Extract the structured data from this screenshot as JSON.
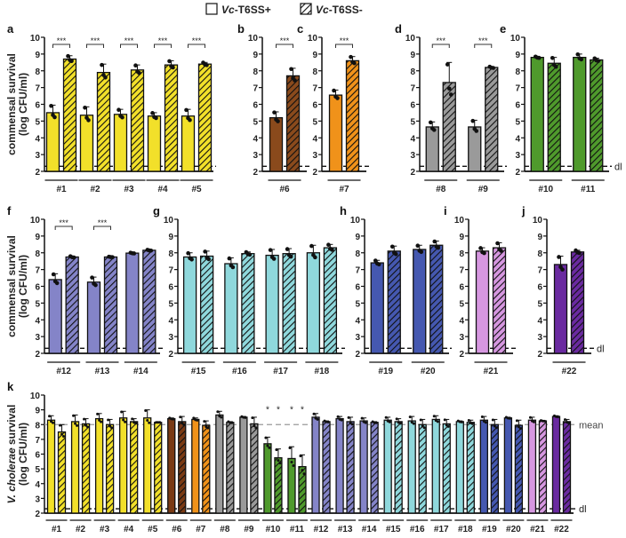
{
  "legend": {
    "items": [
      {
        "italic": "Vc",
        "rest": "-T6SS+",
        "pattern": "solid"
      },
      {
        "italic": "Vc",
        "rest": "-T6SS-",
        "pattern": "hatched"
      }
    ]
  },
  "labels": {
    "ylabel_commensal_1": "commensal survival",
    "ylabel_commensal_2": "(log CFU/ml)",
    "ylabel_vc_1_italic": "V. cholerae",
    "ylabel_vc_1_rest": " survival",
    "ylabel_vc_2": "(log CFU/ml)",
    "dl": "dl",
    "mean": "mean"
  },
  "chart_data": [
    {
      "panel": "a",
      "type": "bar",
      "ylim": [
        2,
        10
      ],
      "yticks": [
        2,
        3,
        4,
        5,
        6,
        7,
        8,
        9,
        10
      ],
      "detection_limit": 2.3,
      "color": "#f2e02a",
      "groups": [
        {
          "label": "#1",
          "solid": 5.5,
          "hatched": 8.7,
          "solid_err": 0.45,
          "hatched_err": 0.2,
          "sig": "***"
        },
        {
          "label": "#2",
          "solid": 5.35,
          "hatched": 7.9,
          "solid_err": 0.5,
          "hatched_err": 0.5,
          "sig": "***"
        },
        {
          "label": "#3",
          "solid": 5.4,
          "hatched": 8.05,
          "solid_err": 0.3,
          "hatched_err": 0.3,
          "sig": "***"
        },
        {
          "label": "#4",
          "solid": 5.3,
          "hatched": 8.35,
          "solid_err": 0.2,
          "hatched_err": 0.25,
          "sig": "***"
        },
        {
          "label": "#5",
          "solid": 5.3,
          "hatched": 8.4,
          "solid_err": 0.4,
          "hatched_err": 0.1,
          "sig": "***"
        }
      ]
    },
    {
      "panel": "b",
      "type": "bar",
      "ylim": [
        2,
        10
      ],
      "detection_limit": 2.3,
      "color": "#8a4a1c",
      "groups": [
        {
          "label": "#6",
          "solid": 5.2,
          "hatched": 7.7,
          "solid_err": 0.35,
          "hatched_err": 0.45,
          "sig": "***"
        }
      ]
    },
    {
      "panel": "c",
      "type": "bar",
      "ylim": [
        2,
        10
      ],
      "detection_limit": 2.3,
      "color": "#f0921a",
      "groups": [
        {
          "label": "#7",
          "solid": 6.55,
          "hatched": 8.6,
          "solid_err": 0.3,
          "hatched_err": 0.25,
          "sig": "***"
        }
      ]
    },
    {
      "panel": "d",
      "type": "bar",
      "ylim": [
        2,
        10
      ],
      "detection_limit": 2.3,
      "color": "#9a9a9a",
      "groups": [
        {
          "label": "#8",
          "solid": 4.65,
          "hatched": 7.3,
          "solid_err": 0.3,
          "hatched_err": 1.2,
          "sig": "***"
        },
        {
          "label": "#9",
          "solid": 4.65,
          "hatched": 8.2,
          "solid_err": 0.4,
          "hatched_err": 0.05,
          "sig": "***"
        }
      ]
    },
    {
      "panel": "e",
      "type": "bar",
      "ylim": [
        2,
        10
      ],
      "detection_limit": 2.3,
      "color": "#4f9a2c",
      "show_dl": true,
      "groups": [
        {
          "label": "#10",
          "solid": 8.8,
          "hatched": 8.45,
          "solid_err": 0.05,
          "hatched_err": 0.35,
          "sig": ""
        },
        {
          "label": "#11",
          "solid": 8.8,
          "hatched": 8.65,
          "solid_err": 0.2,
          "hatched_err": 0.1,
          "sig": ""
        }
      ]
    },
    {
      "panel": "f",
      "type": "bar",
      "ylim": [
        2,
        10
      ],
      "detection_limit": 2.3,
      "color": "#8484c8",
      "groups": [
        {
          "label": "#12",
          "solid": 6.4,
          "hatched": 7.75,
          "solid_err": 0.35,
          "hatched_err": 0.05,
          "sig": "***"
        },
        {
          "label": "#13",
          "solid": 6.25,
          "hatched": 7.75,
          "solid_err": 0.3,
          "hatched_err": 0.02,
          "sig": "***"
        },
        {
          "label": "#14",
          "solid": 7.98,
          "hatched": 8.15,
          "solid_err": 0.03,
          "hatched_err": 0.03,
          "sig": ""
        }
      ]
    },
    {
      "panel": "g",
      "type": "bar",
      "ylim": [
        2,
        10
      ],
      "detection_limit": 2.3,
      "color": "#8fd8dc",
      "groups": [
        {
          "label": "#15",
          "solid": 7.75,
          "hatched": 7.8,
          "solid_err": 0.25,
          "hatched_err": 0.3,
          "sig": ""
        },
        {
          "label": "#16",
          "solid": 7.35,
          "hatched": 7.95,
          "solid_err": 0.35,
          "hatched_err": 0.1,
          "sig": ""
        },
        {
          "label": "#17",
          "solid": 7.85,
          "hatched": 7.95,
          "solid_err": 0.35,
          "hatched_err": 0.3,
          "sig": ""
        },
        {
          "label": "#18",
          "solid": 8.0,
          "hatched": 8.3,
          "solid_err": 0.45,
          "hatched_err": 0.2,
          "sig": ""
        }
      ]
    },
    {
      "panel": "h",
      "type": "bar",
      "ylim": [
        2,
        10
      ],
      "detection_limit": 2.3,
      "color": "#4558b0",
      "groups": [
        {
          "label": "#19",
          "solid": 7.4,
          "hatched": 8.1,
          "solid_err": 0.15,
          "hatched_err": 0.3,
          "sig": ""
        },
        {
          "label": "#20",
          "solid": 8.2,
          "hatched": 8.45,
          "solid_err": 0.25,
          "hatched_err": 0.25,
          "sig": ""
        }
      ]
    },
    {
      "panel": "i",
      "type": "bar",
      "ylim": [
        2,
        10
      ],
      "detection_limit": 2.3,
      "color": "#d697e0",
      "groups": [
        {
          "label": "#21",
          "solid": 8.1,
          "hatched": 8.3,
          "solid_err": 0.2,
          "hatched_err": 0.3,
          "sig": ""
        }
      ]
    },
    {
      "panel": "j",
      "type": "bar",
      "ylim": [
        2,
        10
      ],
      "detection_limit": 2.3,
      "color": "#6a2aa0",
      "show_dl": true,
      "groups": [
        {
          "label": "#22",
          "solid": 7.3,
          "hatched": 8.05,
          "solid_err": 0.5,
          "hatched_err": 0.1,
          "sig": ""
        }
      ]
    },
    {
      "panel": "k",
      "type": "bar",
      "ylim": [
        2,
        10
      ],
      "detection_limit": 2.3,
      "mean_line": 8.0,
      "groups": [
        {
          "label": "#1",
          "color": "#f2e02a",
          "solid": 8.3,
          "hatched": 7.5,
          "solid_err": 0.3,
          "hatched_err": 0.5,
          "sig": ""
        },
        {
          "label": "#2",
          "color": "#f2e02a",
          "solid": 8.2,
          "hatched": 8.05,
          "solid_err": 0.45,
          "hatched_err": 0.35,
          "sig": ""
        },
        {
          "label": "#3",
          "color": "#f2e02a",
          "solid": 8.4,
          "hatched": 8.0,
          "solid_err": 0.35,
          "hatched_err": 0.35,
          "sig": ""
        },
        {
          "label": "#4",
          "color": "#f2e02a",
          "solid": 8.45,
          "hatched": 8.2,
          "solid_err": 0.45,
          "hatched_err": 0.2,
          "sig": ""
        },
        {
          "label": "#5",
          "color": "#f2e02a",
          "solid": 8.45,
          "hatched": 8.15,
          "solid_err": 0.55,
          "hatched_err": 0.0,
          "sig": ""
        },
        {
          "label": "#6",
          "color": "#7a3a14",
          "solid": 8.4,
          "hatched": 8.2,
          "solid_err": 0.05,
          "hatched_err": 0.35,
          "sig": ""
        },
        {
          "label": "#7",
          "color": "#f0921a",
          "solid": 8.35,
          "hatched": 7.95,
          "solid_err": 0.1,
          "hatched_err": 0.3,
          "sig": ""
        },
        {
          "label": "#8",
          "color": "#9a9a9a",
          "solid": 8.65,
          "hatched": 8.15,
          "solid_err": 0.25,
          "hatched_err": 0.05,
          "sig": ""
        },
        {
          "label": "#9",
          "color": "#9a9a9a",
          "solid": 8.5,
          "hatched": 8.05,
          "solid_err": 0.05,
          "hatched_err": 0.45,
          "sig": ""
        },
        {
          "label": "#10",
          "color": "#4f9a2c",
          "solid": 6.7,
          "hatched": 5.75,
          "solid_err": 0.45,
          "hatched_err": 0.6,
          "sig": "*"
        },
        {
          "label": "#11",
          "color": "#4f9a2c",
          "solid": 5.7,
          "hatched": 5.15,
          "solid_err": 0.8,
          "hatched_err": 0.8,
          "sig": "*"
        },
        {
          "label": "#12",
          "color": "#8484c8",
          "solid": 8.5,
          "hatched": 8.2,
          "solid_err": 0.25,
          "hatched_err": 0.05,
          "sig": ""
        },
        {
          "label": "#13",
          "color": "#8484c8",
          "solid": 8.4,
          "hatched": 8.2,
          "solid_err": 0.15,
          "hatched_err": 0.3,
          "sig": ""
        },
        {
          "label": "#14",
          "color": "#8484c8",
          "solid": 8.25,
          "hatched": 8.15,
          "solid_err": 0.2,
          "hatched_err": 0.05,
          "sig": ""
        },
        {
          "label": "#15",
          "color": "#8fd8dc",
          "solid": 8.3,
          "hatched": 8.2,
          "solid_err": 0.2,
          "hatched_err": 0.2,
          "sig": ""
        },
        {
          "label": "#16",
          "color": "#8fd8dc",
          "solid": 8.25,
          "hatched": 8.0,
          "solid_err": 0.3,
          "hatched_err": 0.35,
          "sig": ""
        },
        {
          "label": "#17",
          "color": "#8fd8dc",
          "solid": 8.35,
          "hatched": 8.05,
          "solid_err": 0.25,
          "hatched_err": 0.3,
          "sig": ""
        },
        {
          "label": "#18",
          "color": "#8fd8dc",
          "solid": 8.2,
          "hatched": 8.15,
          "solid_err": 0.05,
          "hatched_err": 0.15,
          "sig": ""
        },
        {
          "label": "#19",
          "color": "#4558b0",
          "solid": 8.3,
          "hatched": 8.0,
          "solid_err": 0.25,
          "hatched_err": 0.35,
          "sig": ""
        },
        {
          "label": "#20",
          "color": "#4558b0",
          "solid": 8.45,
          "hatched": 7.95,
          "solid_err": 0.05,
          "hatched_err": 0.35,
          "sig": ""
        },
        {
          "label": "#21",
          "color": "#d697e0",
          "solid": 8.3,
          "hatched": 8.25,
          "solid_err": 0.2,
          "hatched_err": 0.03,
          "sig": ""
        },
        {
          "label": "#22",
          "color": "#6a2aa0",
          "solid": 8.55,
          "hatched": 8.2,
          "solid_err": 0.05,
          "hatched_err": 0.15,
          "sig": ""
        }
      ]
    }
  ]
}
